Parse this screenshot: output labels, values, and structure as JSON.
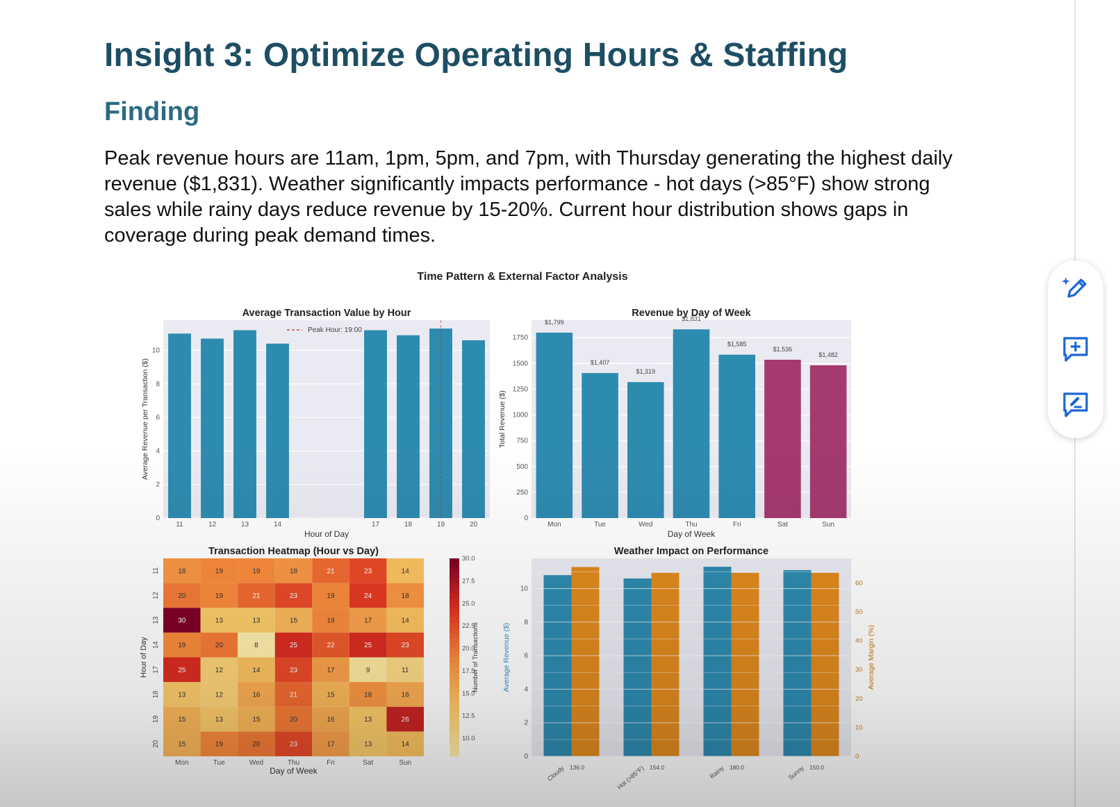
{
  "heading": "Insight 3: Optimize Operating Hours & Staffing",
  "subheading": "Finding",
  "paragraph": "Peak revenue hours are 11am, 1pm, 5pm, and 7pm, with Thursday generating the highest daily revenue ($1,831). Weather significantly impacts performance - hot days (>85°F) show strong sales while rainy days reduce revenue by 15-20%. Current hour distribution shows gaps in coverage during peak demand times.",
  "figure_title": "Time Pattern & External Factor Analysis",
  "toolbar_icons": [
    "ai-edit-icon",
    "add-comment-icon",
    "suggest-edit-icon"
  ],
  "colors": {
    "heading": "#1d4e63",
    "bar_blue": "#2e8bb0",
    "bar_magenta": "#a43a6e",
    "bar_orange": "#e08a1e",
    "plot_bg": "#eaeaf2"
  },
  "chart_data": [
    {
      "type": "bar",
      "title": "Average Transaction Value by Hour",
      "xlabel": "Hour of Day",
      "ylabel": "Average Revenue per Transaction ($)",
      "categories": [
        "11",
        "12",
        "13",
        "14",
        "17",
        "18",
        "19",
        "20"
      ],
      "x": [
        11,
        12,
        13,
        14,
        17,
        18,
        19,
        20
      ],
      "values": [
        11.0,
        10.7,
        11.2,
        10.4,
        11.2,
        10.9,
        11.3,
        10.6
      ],
      "xlim": [
        10.5,
        20.5
      ],
      "ylim": [
        0,
        11.8
      ],
      "yticks": [
        0,
        2,
        4,
        6,
        8,
        10
      ],
      "peak_hour": 19,
      "legend": "Peak Hour: 19:00",
      "legend_position": "top-center"
    },
    {
      "type": "bar",
      "title": "Revenue by Day of Week",
      "xlabel": "Day of Week",
      "ylabel": "Total Revenue ($)",
      "categories": [
        "Mon",
        "Tue",
        "Wed",
        "Thu",
        "Fri",
        "Sat",
        "Sun"
      ],
      "values": [
        1799,
        1407,
        1319,
        1831,
        1585,
        1536,
        1482
      ],
      "data_labels": [
        "$1,799",
        "$1,407",
        "$1,319",
        "$1,831",
        "$1,585",
        "$1,536",
        "$1,482"
      ],
      "weekend": [
        "Sat",
        "Sun"
      ],
      "ylim": [
        0,
        1920
      ],
      "yticks": [
        0,
        250,
        500,
        750,
        1000,
        1250,
        1500,
        1750
      ]
    },
    {
      "type": "heatmap",
      "title": "Transaction Heatmap (Hour vs Day)",
      "xlabel": "Day of Week",
      "ylabel": "Hour of Day",
      "colorbar_label": "Number of Transactions",
      "x": [
        "Mon",
        "Tue",
        "Wed",
        "Thu",
        "Fri",
        "Sat",
        "Sun"
      ],
      "y": [
        "11",
        "12",
        "13",
        "14",
        "17",
        "18",
        "19",
        "20"
      ],
      "values": [
        [
          18,
          19,
          19,
          18,
          21,
          23,
          14
        ],
        [
          20,
          19,
          21,
          23,
          19,
          24,
          18
        ],
        [
          30,
          13,
          13,
          15,
          19,
          17,
          14
        ],
        [
          19,
          20,
          8,
          25,
          22,
          25,
          23
        ],
        [
          25,
          12,
          14,
          23,
          17,
          9,
          11
        ],
        [
          13,
          12,
          16,
          21,
          15,
          18,
          16
        ],
        [
          15,
          13,
          15,
          20,
          16,
          13,
          26
        ],
        [
          15,
          19,
          20,
          23,
          17,
          13,
          14
        ]
      ],
      "vmin": 8,
      "vmax": 30,
      "colorbar_ticks": [
        "10.0",
        "12.5",
        "15.0",
        "17.5",
        "20.0",
        "22.5",
        "25.0",
        "27.5",
        "30.0"
      ]
    },
    {
      "type": "bar",
      "title": "Weather Impact on Performance",
      "ylabel": "Average Revenue ($)",
      "y2label": "Average Margin (%)",
      "categories": [
        "Cloudy",
        "Hot (>85°F)",
        "Rainy",
        "Sunny"
      ],
      "bar_labels": [
        "136.0",
        "154.0",
        "180.0",
        "150.0"
      ],
      "series": [
        {
          "name": "Average Revenue ($)",
          "axis": "left",
          "values": [
            10.8,
            10.6,
            11.3,
            11.1
          ]
        },
        {
          "name": "Average Margin (%)",
          "axis": "right",
          "values": [
            65.5,
            63.5,
            63.5,
            63.5
          ]
        }
      ],
      "ylim": [
        0,
        11.8
      ],
      "yticks": [
        0,
        2,
        4,
        6,
        8,
        10
      ],
      "y2lim": [
        0,
        68.5
      ],
      "y2ticks": [
        0,
        10,
        20,
        30,
        40,
        50,
        60
      ]
    }
  ]
}
